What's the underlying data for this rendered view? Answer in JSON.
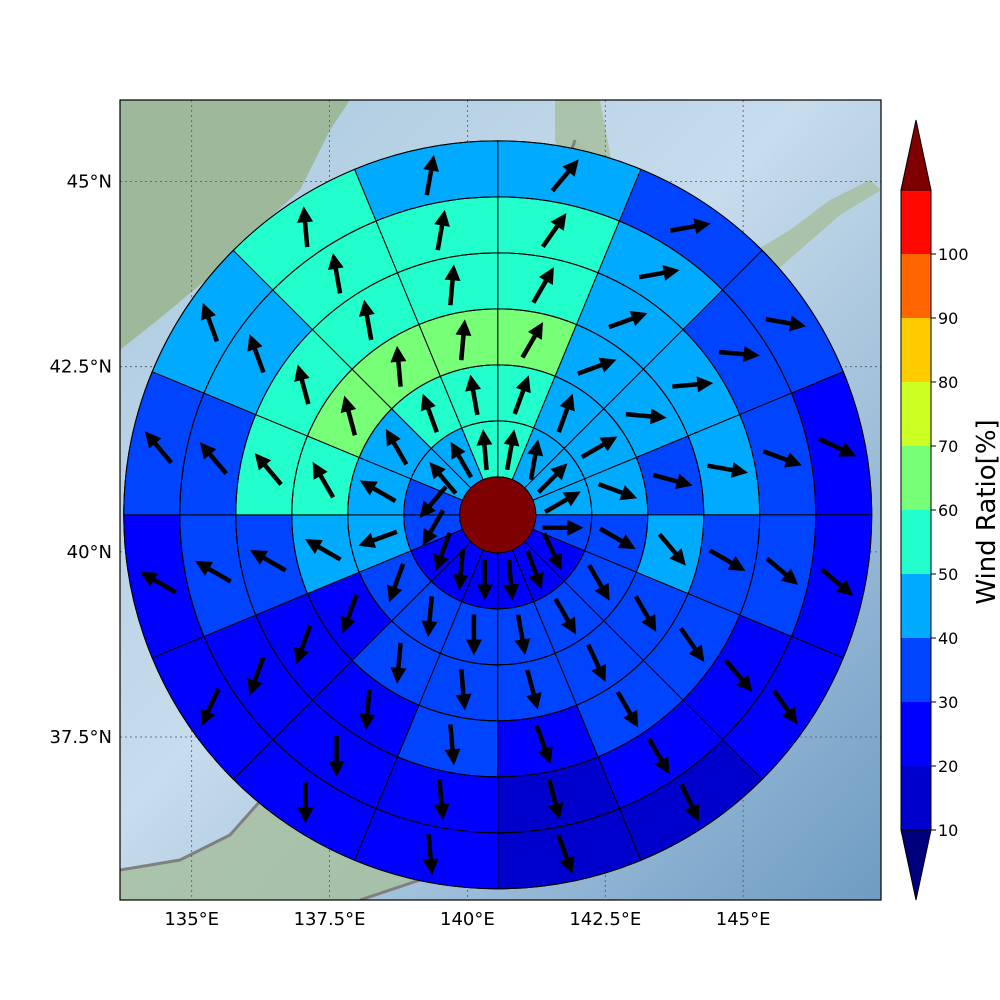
{
  "map": {
    "lon_ticks": [
      "135°E",
      "137.5°E",
      "140°E",
      "142.5°E",
      "145°E"
    ],
    "lat_ticks": [
      "45°N",
      "42.5°N",
      "40°N",
      "37.5°N"
    ],
    "lon_values": [
      135,
      137.5,
      140,
      142.5,
      145
    ],
    "lat_values": [
      45,
      42.5,
      40,
      37.5
    ],
    "extent": {
      "lon": [
        133.7,
        147.5
      ],
      "lat": [
        35.3,
        46.1
      ]
    },
    "center": {
      "lon": 140.55,
      "lat": 40.5
    }
  },
  "colorbar": {
    "title": "Wind Ratio[%]",
    "ticks": [
      "10",
      "20",
      "30",
      "40",
      "50",
      "60",
      "70",
      "80",
      "90",
      "100"
    ],
    "bounds": [
      10,
      20,
      30,
      40,
      50,
      60,
      70,
      80,
      90,
      100
    ],
    "colors": [
      "#0000cc",
      "#0000ff",
      "#0044ff",
      "#00aaff",
      "#22ffcc",
      "#77ff77",
      "#ccff22",
      "#ffcc00",
      "#ff6600",
      "#ff0800"
    ],
    "under_color": "#00007f",
    "over_color": "#7f0000"
  },
  "chart_data": {
    "type": "heatmap",
    "title": "",
    "rings": 6,
    "sectors": 16,
    "sector_order": "clockwise from north",
    "center_value": 100,
    "ratios_percent": [
      [
        58,
        45,
        40,
        40,
        35,
        20,
        20,
        25,
        25,
        25,
        25,
        35,
        35,
        40,
        45,
        58
      ],
      [
        58,
        45,
        45,
        45,
        35,
        35,
        30,
        35,
        35,
        35,
        35,
        42,
        42,
        42,
        52,
        58
      ],
      [
        62,
        45,
        45,
        35,
        45,
        35,
        35,
        35,
        35,
        35,
        25,
        42,
        52,
        62,
        62,
        62
      ],
      [
        52,
        45,
        45,
        45,
        35,
        35,
        30,
        25,
        35,
        25,
        25,
        35,
        52,
        52,
        52,
        52
      ],
      [
        52,
        45,
        35,
        35,
        30,
        25,
        25,
        15,
        25,
        25,
        25,
        35,
        35,
        45,
        52,
        52
      ],
      [
        45,
        35,
        35,
        25,
        25,
        25,
        15,
        15,
        25,
        25,
        25,
        25,
        35,
        45,
        52,
        45
      ]
    ],
    "direction_deg": [
      [
        10,
        10,
        45,
        60,
        90,
        155,
        160,
        175,
        180,
        185,
        200,
        210,
        220,
        320,
        330,
        355
      ],
      [
        20,
        20,
        60,
        110,
        120,
        150,
        150,
        170,
        180,
        185,
        200,
        250,
        300,
        330,
        340,
        350
      ],
      [
        30,
        70,
        95,
        105,
        140,
        150,
        155,
        165,
        175,
        185,
        200,
        300,
        330,
        345,
        355,
        5
      ],
      [
        30,
        70,
        85,
        100,
        120,
        145,
        150,
        160,
        175,
        185,
        200,
        300,
        320,
        345,
        350,
        5
      ],
      [
        35,
        80,
        95,
        110,
        130,
        140,
        150,
        165,
        175,
        180,
        200,
        300,
        320,
        340,
        350,
        10
      ],
      [
        40,
        80,
        100,
        115,
        130,
        145,
        155,
        160,
        175,
        180,
        205,
        300,
        320,
        340,
        355,
        10
      ]
    ]
  }
}
